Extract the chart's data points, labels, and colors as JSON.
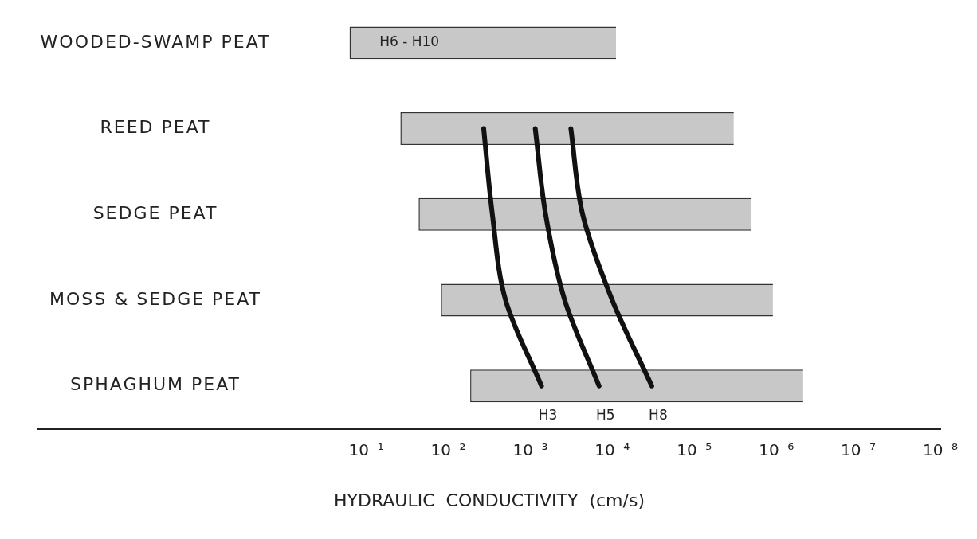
{
  "chart_data": {
    "type": "bar",
    "orientation": "horizontal",
    "log": "x",
    "xlabel": "HYDRAULIC  CONDUCTIVITY  (cm/s)",
    "categories": [
      "WOODED-SWAMP PEAT",
      "REED PEAT",
      "SEDGE PEAT",
      "MOSS & SEDGE PEAT",
      "SPHAGHUM PEAT"
    ],
    "series": [
      {
        "color": "#c8c8c8",
        "base": [
          9e-05,
          3.3e-06,
          2e-06,
          1.1e-06,
          4.7e-07
        ],
        "values": [
          0.15991,
          0.0383967,
          0.022998,
          0.0122989,
          0.00539953
        ]
      },
      {
        "type": "line",
        "name": "H3",
        "color": "#111111",
        "values": [
          null,
          0.0037,
          0.0029,
          0.002,
          0.00073
        ]
      },
      {
        "type": "line",
        "name": "H5",
        "color": "#111111",
        "values": [
          null,
          0.00087,
          0.00065,
          0.00038,
          0.000145
        ]
      },
      {
        "type": "line",
        "name": "H8",
        "color": "#111111",
        "values": [
          null,
          0.00032,
          0.00023,
          0.0001,
          3.3e-05
        ]
      }
    ],
    "xlim": [
      1000,
      1e-08
    ],
    "xticks": [
      {
        "value": 0.1,
        "label": "10⁻¹"
      },
      {
        "value": 0.01,
        "label": "10⁻²"
      },
      {
        "value": 0.001,
        "label": "10⁻³"
      },
      {
        "value": 0.0001,
        "label": "10⁻⁴"
      },
      {
        "value": 1e-05,
        "label": "10⁻⁵"
      },
      {
        "value": 1e-06,
        "label": "10⁻⁶"
      },
      {
        "value": 1e-07,
        "label": "10⁻⁷"
      },
      {
        "value": 1e-08,
        "label": "10⁻⁸"
      }
    ],
    "annotations": [
      "H6 - H10"
    ]
  }
}
